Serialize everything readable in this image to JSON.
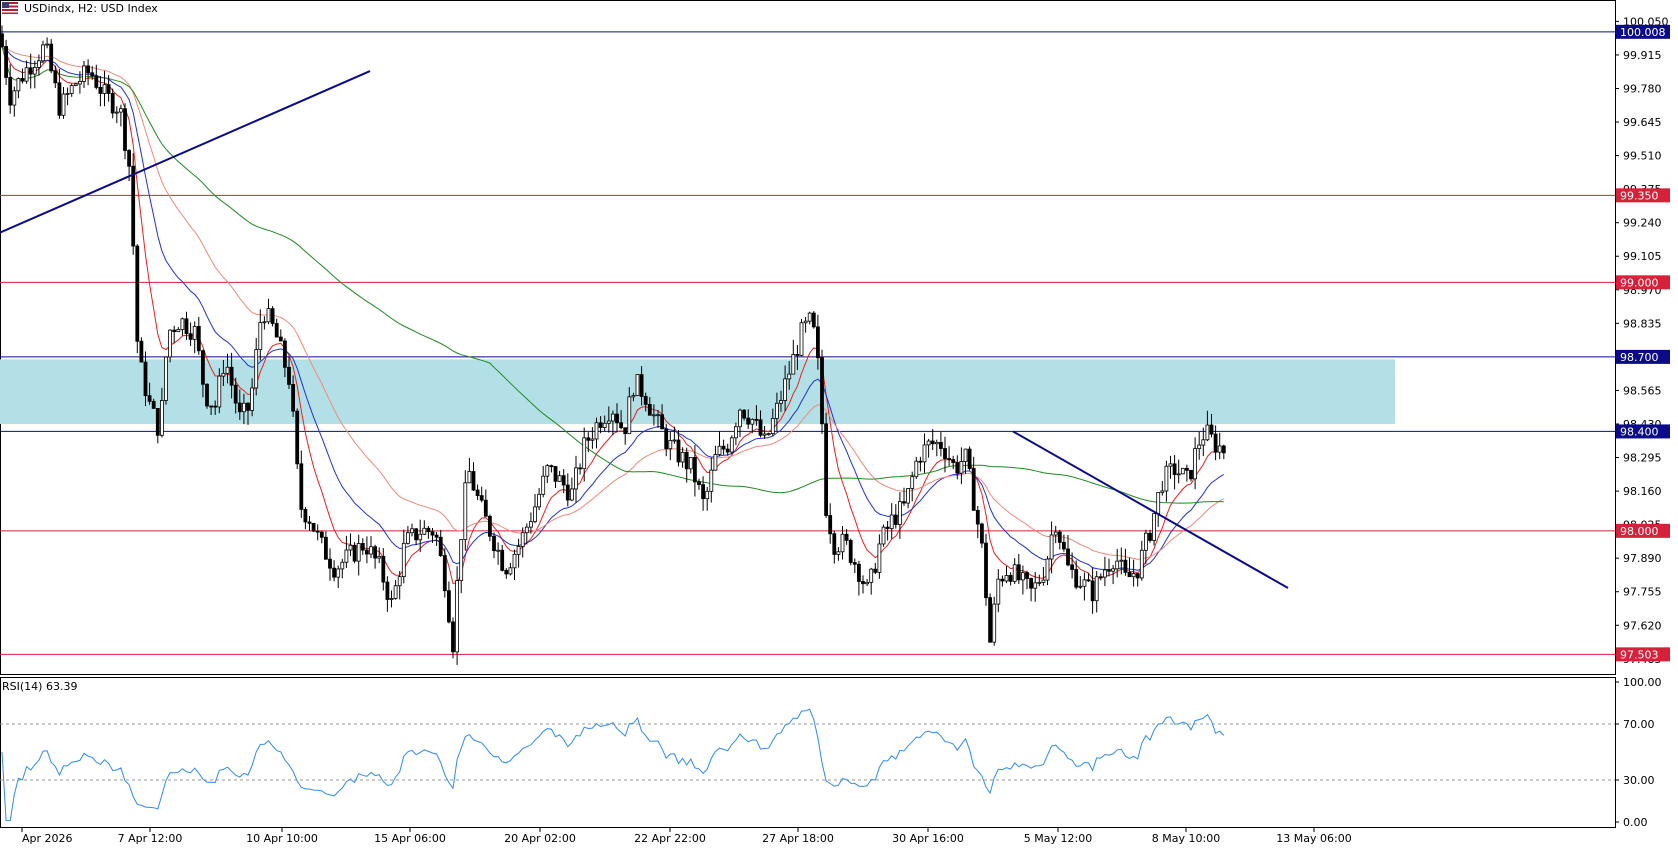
{
  "header": {
    "symbol_title": "USDindx, H2:  USD Index",
    "flag_icon": "us-flag-icon"
  },
  "chart_data": {
    "type": "candlestick",
    "symbol": "USDindx",
    "timeframe": "H2",
    "title": "USD Index",
    "price_axis_ticks": [
      "100.050",
      "99.915",
      "99.780",
      "99.645",
      "99.510",
      "99.375",
      "99.240",
      "99.105",
      "98.970",
      "98.835",
      "98.700",
      "98.565",
      "98.430",
      "98.295",
      "98.160",
      "98.025",
      "97.890",
      "97.755",
      "97.620",
      "97.485"
    ],
    "price_range": [
      97.44,
      100.12
    ],
    "x_tick_labels": [
      "Apr 2026",
      "7 Apr 12:00",
      "10 Apr 10:00",
      "15 Apr 06:00",
      "20 Apr 02:00",
      "22 Apr 22:00",
      "27 Apr 18:00",
      "30 Apr 16:00",
      "5 May 12:00",
      "8 May 10:00",
      "13 May 06:00"
    ],
    "horizontal_levels": [
      {
        "value": 100.008,
        "label": "100.008",
        "color": "#0b0b8a"
      },
      {
        "value": 99.35,
        "label": "99.350",
        "color": "#d6213a"
      },
      {
        "value": 99.0,
        "label": "99.000",
        "color": "#d6213a"
      },
      {
        "value": 98.7,
        "label": "98.700",
        "color": "#0b0b8a"
      },
      {
        "value": 98.4,
        "label": "98.400",
        "color": "#0b0b8a"
      },
      {
        "value": 98.0,
        "label": "98.000",
        "color": "#d6213a"
      },
      {
        "value": 97.503,
        "label": "97.503",
        "color": "#d6213a"
      }
    ],
    "zone": {
      "top": 98.69,
      "bottom": 98.43,
      "color": "#b3e0e6"
    },
    "trendlines": [
      {
        "from_price": 99.2,
        "to_price": 99.85,
        "color": "#0b0b8a"
      },
      {
        "from_price": 98.4,
        "to_price": 97.77,
        "color": "#0b0b8a"
      }
    ],
    "moving_averages": [
      {
        "color": "#e62020"
      },
      {
        "color": "#1f33d6"
      },
      {
        "color": "#f08a7a"
      },
      {
        "color": "#1e8a1e"
      }
    ],
    "key_path": [
      [
        0,
        100.0
      ],
      [
        10,
        99.75
      ],
      [
        25,
        99.85
      ],
      [
        45,
        99.95
      ],
      [
        60,
        99.7
      ],
      [
        75,
        99.8
      ],
      [
        90,
        99.85
      ],
      [
        105,
        99.75
      ],
      [
        120,
        99.7
      ],
      [
        130,
        99.45
      ],
      [
        138,
        98.7
      ],
      [
        150,
        98.5
      ],
      [
        160,
        98.4
      ],
      [
        168,
        98.8
      ],
      [
        180,
        98.85
      ],
      [
        195,
        98.8
      ],
      [
        205,
        98.55
      ],
      [
        215,
        98.5
      ],
      [
        225,
        98.7
      ],
      [
        240,
        98.45
      ],
      [
        250,
        98.5
      ],
      [
        262,
        98.9
      ],
      [
        275,
        98.8
      ],
      [
        290,
        98.6
      ],
      [
        300,
        98.1
      ],
      [
        310,
        98.05
      ],
      [
        320,
        97.95
      ],
      [
        335,
        97.85
      ],
      [
        350,
        97.9
      ],
      [
        365,
        97.95
      ],
      [
        380,
        97.85
      ],
      [
        392,
        97.7
      ],
      [
        405,
        97.95
      ],
      [
        420,
        98.0
      ],
      [
        435,
        98.0
      ],
      [
        445,
        97.8
      ],
      [
        453,
        97.55
      ],
      [
        460,
        97.95
      ],
      [
        468,
        98.25
      ],
      [
        480,
        98.1
      ],
      [
        495,
        97.95
      ],
      [
        505,
        97.85
      ],
      [
        520,
        97.95
      ],
      [
        535,
        98.1
      ],
      [
        548,
        98.25
      ],
      [
        560,
        98.2
      ],
      [
        572,
        98.15
      ],
      [
        585,
        98.35
      ],
      [
        600,
        98.45
      ],
      [
        612,
        98.5
      ],
      [
        624,
        98.4
      ],
      [
        634,
        98.6
      ],
      [
        645,
        98.55
      ],
      [
        655,
        98.45
      ],
      [
        668,
        98.35
      ],
      [
        680,
        98.3
      ],
      [
        692,
        98.25
      ],
      [
        704,
        98.1
      ],
      [
        716,
        98.3
      ],
      [
        728,
        98.35
      ],
      [
        740,
        98.5
      ],
      [
        752,
        98.45
      ],
      [
        765,
        98.35
      ],
      [
        778,
        98.5
      ],
      [
        790,
        98.65
      ],
      [
        802,
        98.8
      ],
      [
        812,
        98.85
      ],
      [
        820,
        98.6
      ],
      [
        826,
        98.1
      ],
      [
        834,
        97.95
      ],
      [
        845,
        97.95
      ],
      [
        858,
        97.85
      ],
      [
        868,
        97.75
      ],
      [
        880,
        97.95
      ],
      [
        893,
        98.05
      ],
      [
        905,
        98.1
      ],
      [
        918,
        98.3
      ],
      [
        930,
        98.35
      ],
      [
        942,
        98.35
      ],
      [
        955,
        98.25
      ],
      [
        965,
        98.3
      ],
      [
        975,
        98.1
      ],
      [
        983,
        97.9
      ],
      [
        990,
        97.55
      ],
      [
        998,
        97.8
      ],
      [
        1008,
        97.85
      ],
      [
        1020,
        97.8
      ],
      [
        1032,
        97.75
      ],
      [
        1045,
        97.85
      ],
      [
        1055,
        98.05
      ],
      [
        1068,
        97.85
      ],
      [
        1080,
        97.8
      ],
      [
        1092,
        97.75
      ],
      [
        1105,
        97.85
      ],
      [
        1115,
        97.9
      ],
      [
        1126,
        97.8
      ],
      [
        1138,
        97.85
      ],
      [
        1150,
        98.0
      ],
      [
        1162,
        98.2
      ],
      [
        1175,
        98.25
      ],
      [
        1188,
        98.2
      ],
      [
        1198,
        98.35
      ],
      [
        1205,
        98.4
      ],
      [
        1215,
        98.35
      ],
      [
        1226,
        98.32
      ]
    ],
    "rsi": {
      "label": "RSI(14) 63.39",
      "period": 14,
      "value": 63.39,
      "axis_ticks": [
        "100.00",
        "70.00",
        "30.00",
        "0.00"
      ],
      "levels": [
        70,
        30
      ],
      "color": "#2f8bf0"
    }
  },
  "price_tags": [
    "100.008",
    "99.350",
    "99.000",
    "98.700",
    "98.400",
    "98.000",
    "97.503"
  ]
}
